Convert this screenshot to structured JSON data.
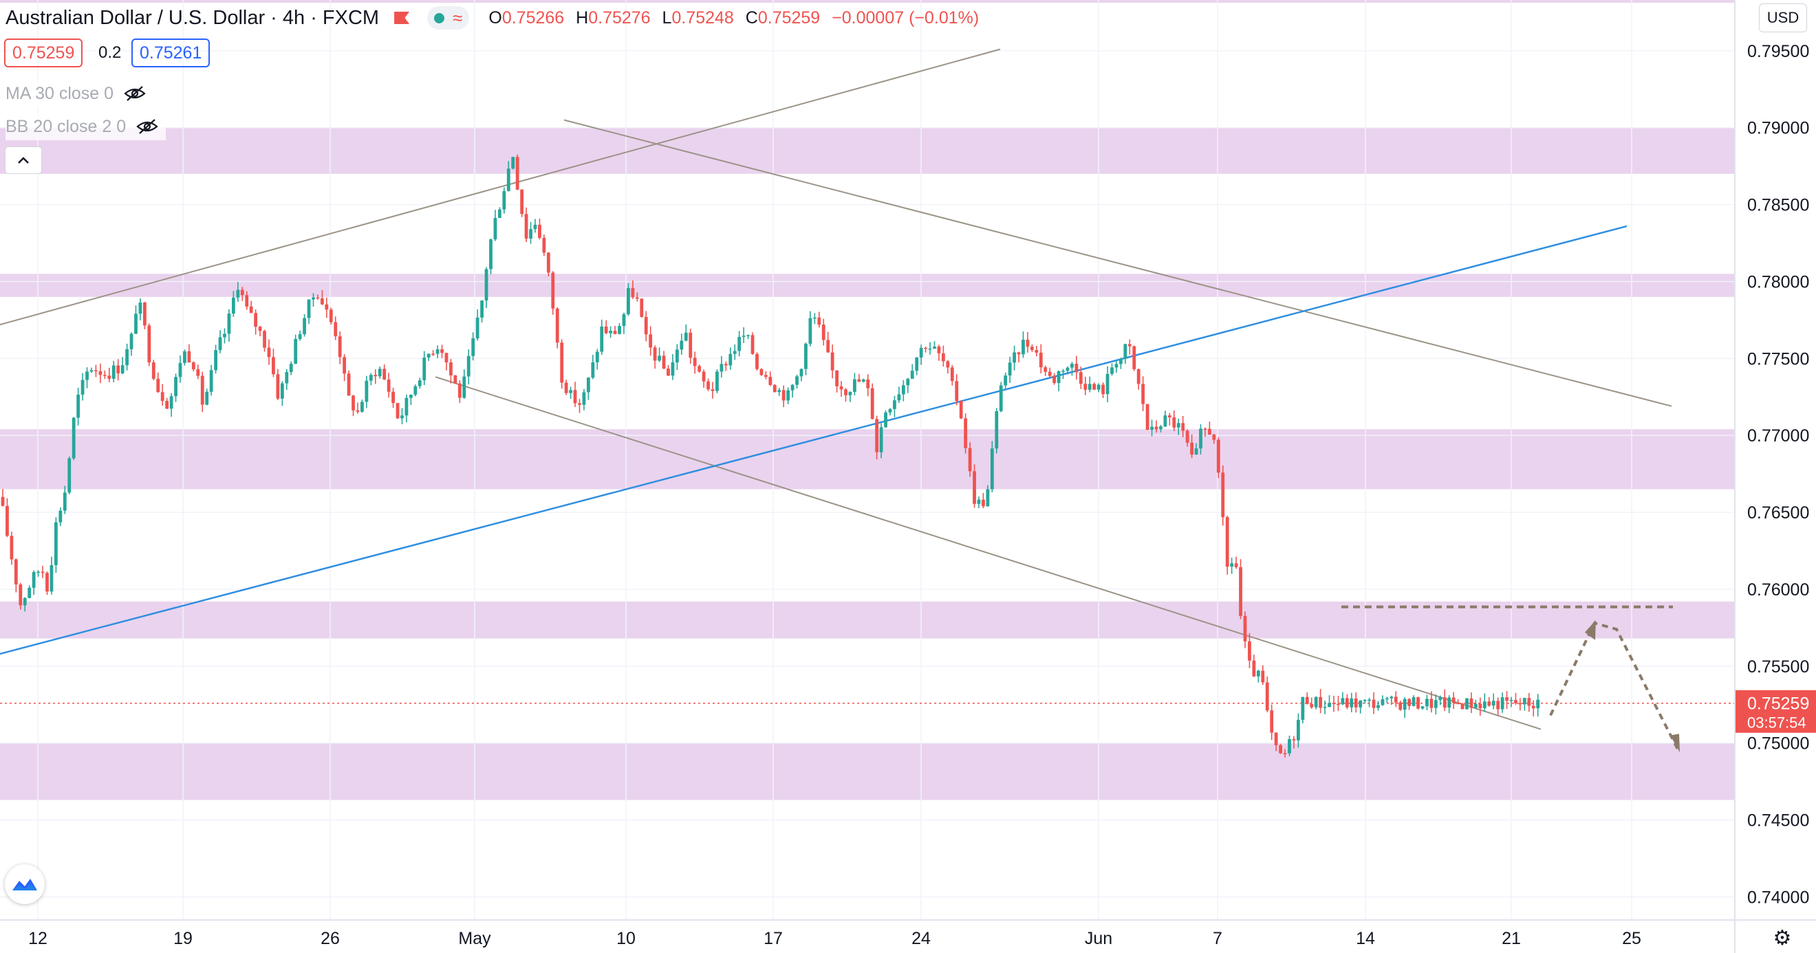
{
  "header": {
    "title": "Australian Dollar / U.S. Dollar · 4h · FXCM",
    "ohlc": {
      "o_label": "O",
      "o": "0.75266",
      "h_label": "H",
      "h": "0.75276",
      "l_label": "L",
      "l": "0.75248",
      "c_label": "C",
      "c": "0.75259",
      "change": "−0.00007 (−0.01%)"
    }
  },
  "quote": {
    "bid": "0.75259",
    "spread": "0.2",
    "ask": "0.75261"
  },
  "indicators": [
    {
      "label": "MA 30 close 0"
    },
    {
      "label": "BB 20 close 2 0"
    }
  ],
  "currency_button": "USD",
  "colors": {
    "up": "#26a69a",
    "down": "#ef5350",
    "zone": "#ead3ee",
    "trendline_gray": "#9b9387",
    "trendline_blue": "#2f8fe0",
    "arrow": "#8a7a68"
  },
  "chart_data": {
    "type": "candlestick",
    "symbol": "AUDUSD",
    "timeframe": "4h",
    "y_axis": {
      "ticks": [
        "0.79500",
        "0.79000",
        "0.78500",
        "0.78000",
        "0.77500",
        "0.77000",
        "0.76500",
        "0.76000",
        "0.75500",
        "0.75000",
        "0.74500",
        "0.74000"
      ],
      "range": [
        0.7385,
        0.7983
      ]
    },
    "x_axis": {
      "ticks": [
        "12",
        "19",
        "26",
        "May",
        "10",
        "17",
        "24",
        "Jun",
        "7",
        "14",
        "21",
        "25"
      ]
    },
    "last_price": {
      "value": "0.75259",
      "countdown": "03:57:54"
    },
    "price_path": [
      [
        0,
        0.766
      ],
      [
        15,
        0.7625
      ],
      [
        30,
        0.759
      ],
      [
        45,
        0.7605
      ],
      [
        60,
        0.7615
      ],
      [
        70,
        0.76
      ],
      [
        80,
        0.764
      ],
      [
        95,
        0.7665
      ],
      [
        110,
        0.772
      ],
      [
        130,
        0.7745
      ],
      [
        155,
        0.774
      ],
      [
        175,
        0.7745
      ],
      [
        190,
        0.776
      ],
      [
        200,
        0.779
      ],
      [
        210,
        0.777
      ],
      [
        215,
        0.7755
      ],
      [
        230,
        0.773
      ],
      [
        245,
        0.772
      ],
      [
        255,
        0.7735
      ],
      [
        265,
        0.7755
      ],
      [
        280,
        0.775
      ],
      [
        295,
        0.772
      ],
      [
        305,
        0.7735
      ],
      [
        315,
        0.7755
      ],
      [
        330,
        0.777
      ],
      [
        345,
        0.78
      ],
      [
        360,
        0.778
      ],
      [
        375,
        0.777
      ],
      [
        390,
        0.7755
      ],
      [
        405,
        0.7725
      ],
      [
        420,
        0.7745
      ],
      [
        440,
        0.7775
      ],
      [
        460,
        0.7795
      ],
      [
        475,
        0.778
      ],
      [
        490,
        0.7765
      ],
      [
        505,
        0.7725
      ],
      [
        520,
        0.7715
      ],
      [
        535,
        0.7735
      ],
      [
        550,
        0.7745
      ],
      [
        565,
        0.773
      ],
      [
        580,
        0.771
      ],
      [
        595,
        0.7725
      ],
      [
        610,
        0.774
      ],
      [
        625,
        0.7755
      ],
      [
        640,
        0.776
      ],
      [
        655,
        0.774
      ],
      [
        670,
        0.7725
      ],
      [
        685,
        0.7755
      ],
      [
        700,
        0.7785
      ],
      [
        710,
        0.782
      ],
      [
        720,
        0.784
      ],
      [
        735,
        0.7865
      ],
      [
        745,
        0.7885
      ],
      [
        755,
        0.7855
      ],
      [
        765,
        0.783
      ],
      [
        780,
        0.784
      ],
      [
        795,
        0.781
      ],
      [
        805,
        0.778
      ],
      [
        815,
        0.774
      ],
      [
        830,
        0.7725
      ],
      [
        845,
        0.772
      ],
      [
        855,
        0.7735
      ],
      [
        865,
        0.775
      ],
      [
        875,
        0.777
      ],
      [
        890,
        0.7765
      ],
      [
        905,
        0.7775
      ],
      [
        915,
        0.7795
      ],
      [
        925,
        0.779
      ],
      [
        940,
        0.776
      ],
      [
        955,
        0.775
      ],
      [
        970,
        0.774
      ],
      [
        985,
        0.7755
      ],
      [
        995,
        0.777
      ],
      [
        1005,
        0.775
      ],
      [
        1020,
        0.7735
      ],
      [
        1035,
        0.773
      ],
      [
        1050,
        0.7745
      ],
      [
        1065,
        0.7755
      ],
      [
        1080,
        0.7765
      ],
      [
        1090,
        0.776
      ],
      [
        1100,
        0.7745
      ],
      [
        1115,
        0.774
      ],
      [
        1130,
        0.773
      ],
      [
        1145,
        0.7725
      ],
      [
        1160,
        0.774
      ],
      [
        1170,
        0.7755
      ],
      [
        1180,
        0.778
      ],
      [
        1190,
        0.777
      ],
      [
        1200,
        0.7755
      ],
      [
        1215,
        0.7735
      ],
      [
        1230,
        0.773
      ],
      [
        1245,
        0.7735
      ],
      [
        1255,
        0.7735
      ],
      [
        1265,
        0.7725
      ],
      [
        1275,
        0.769
      ],
      [
        1285,
        0.7715
      ],
      [
        1300,
        0.7725
      ],
      [
        1315,
        0.7735
      ],
      [
        1330,
        0.775
      ],
      [
        1345,
        0.776
      ],
      [
        1360,
        0.7755
      ],
      [
        1375,
        0.7745
      ],
      [
        1385,
        0.773
      ],
      [
        1395,
        0.772
      ],
      [
        1405,
        0.769
      ],
      [
        1415,
        0.766
      ],
      [
        1425,
        0.7655
      ],
      [
        1435,
        0.766
      ],
      [
        1445,
        0.77
      ],
      [
        1455,
        0.7735
      ],
      [
        1470,
        0.7745
      ],
      [
        1485,
        0.776
      ],
      [
        1500,
        0.776
      ],
      [
        1515,
        0.7745
      ],
      [
        1530,
        0.7735
      ],
      [
        1545,
        0.7745
      ],
      [
        1560,
        0.7745
      ],
      [
        1575,
        0.7735
      ],
      [
        1590,
        0.773
      ],
      [
        1605,
        0.773
      ],
      [
        1620,
        0.775
      ],
      [
        1630,
        0.775
      ],
      [
        1640,
        0.776
      ],
      [
        1650,
        0.774
      ],
      [
        1660,
        0.7725
      ],
      [
        1670,
        0.77
      ],
      [
        1680,
        0.7705
      ],
      [
        1690,
        0.771
      ],
      [
        1700,
        0.771
      ],
      [
        1715,
        0.7705
      ],
      [
        1725,
        0.7695
      ],
      [
        1735,
        0.768
      ],
      [
        1745,
        0.77
      ],
      [
        1755,
        0.7705
      ],
      [
        1765,
        0.77
      ],
      [
        1775,
        0.7655
      ],
      [
        1785,
        0.761
      ],
      [
        1795,
        0.7625
      ],
      [
        1805,
        0.7575
      ],
      [
        1815,
        0.755
      ],
      [
        1825,
        0.7545
      ],
      [
        1835,
        0.754
      ],
      [
        1845,
        0.751
      ],
      [
        1855,
        0.7495
      ],
      [
        1865,
        0.749
      ],
      [
        1875,
        0.75
      ],
      [
        1885,
        0.751
      ],
      [
        1895,
        0.753
      ],
      [
        1905,
        0.7528
      ],
      [
        1915,
        0.7526
      ]
    ]
  }
}
